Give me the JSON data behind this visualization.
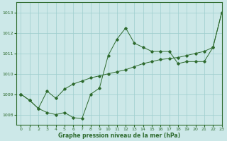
{
  "line1_x": [
    0,
    1,
    2,
    3,
    4,
    5,
    6,
    7,
    8,
    9,
    10,
    11,
    12,
    13,
    14,
    15,
    16,
    17,
    18,
    19,
    20,
    21,
    22,
    23
  ],
  "line1_y": [
    1009.0,
    1008.7,
    1008.3,
    1008.1,
    1008.0,
    1008.1,
    1007.85,
    1007.8,
    1009.0,
    1009.3,
    1010.9,
    1011.7,
    1012.25,
    1011.5,
    1011.3,
    1011.1,
    1011.1,
    1011.1,
    1010.5,
    1010.6,
    1010.6,
    1010.6,
    1011.3,
    1013.0
  ],
  "line2_x": [
    0,
    1,
    2,
    3,
    4,
    5,
    6,
    7,
    8,
    9,
    10,
    11,
    12,
    13,
    14,
    15,
    16,
    17,
    18,
    19,
    20,
    21,
    22,
    23
  ],
  "line2_y": [
    1009.0,
    1008.7,
    1008.3,
    1009.15,
    1008.8,
    1009.25,
    1009.5,
    1009.65,
    1009.8,
    1009.9,
    1010.0,
    1010.1,
    1010.2,
    1010.35,
    1010.5,
    1010.6,
    1010.7,
    1010.75,
    1010.8,
    1010.9,
    1011.0,
    1011.1,
    1011.3,
    1013.0
  ],
  "bg_color": "#cce8e8",
  "line_color": "#2d6a2d",
  "grid_color": "#9ecece",
  "xlabel": "Graphe pression niveau de la mer (hPa)",
  "ylim": [
    1007.5,
    1013.5
  ],
  "xlim": [
    -0.5,
    23
  ],
  "yticks": [
    1008,
    1009,
    1010,
    1011,
    1012,
    1013
  ],
  "xticks": [
    0,
    1,
    2,
    3,
    4,
    5,
    6,
    7,
    8,
    9,
    10,
    11,
    12,
    13,
    14,
    15,
    16,
    17,
    18,
    19,
    20,
    21,
    22,
    23
  ]
}
